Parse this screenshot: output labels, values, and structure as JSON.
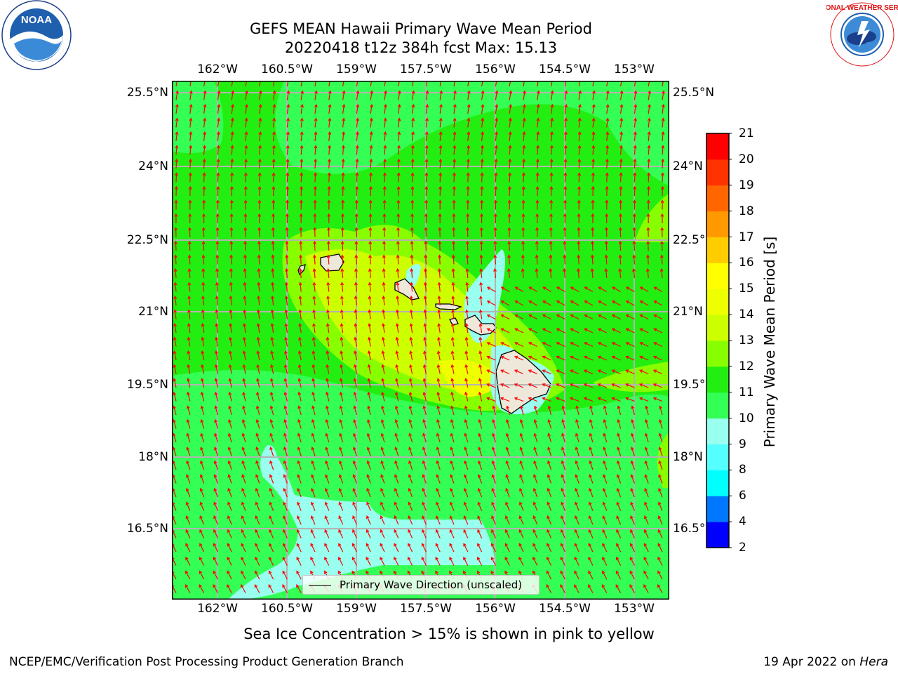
{
  "header": {
    "title_line1": "GEFS MEAN Hawaii Primary Wave Mean Period",
    "title_line2": "20220418 t12z 384h fcst   Max: 15.13"
  },
  "map": {
    "lon_labels": [
      "162°W",
      "160.5°W",
      "159°W",
      "157.5°W",
      "156°W",
      "154.5°W",
      "153°W"
    ],
    "lat_labels_left": [
      "25.5°N",
      "24°N",
      "22.5°N",
      "21°N",
      "19.5°N",
      "18°N",
      "16.5°N"
    ],
    "lat_labels_right": [
      "25.5°N",
      "24°N",
      "22.5°N",
      "21°N",
      "19.5°N",
      "18°N",
      "16.5°N"
    ],
    "legend_label": "Primary Wave Direction (unscaled)",
    "arrow_color": "#ff0000",
    "land_color": "#eee8da"
  },
  "colorbar": {
    "title": "Primary Wave Mean Period [s]",
    "levels": [
      "2",
      "4",
      "6",
      "8",
      "9",
      "10",
      "11",
      "12",
      "13",
      "14",
      "15",
      "16",
      "17",
      "18",
      "19",
      "20",
      "21"
    ],
    "colors": [
      "#0000ff",
      "#0077ff",
      "#00ffff",
      "#55ffff",
      "#99ffee",
      "#33ff55",
      "#22ee11",
      "#88ff00",
      "#ccff00",
      "#eeff00",
      "#ffff00",
      "#ffcc00",
      "#ff9900",
      "#ff6600",
      "#ff3300",
      "#ff0000"
    ]
  },
  "notes": {
    "sea_ice": "Sea Ice Concentration > 15% is shown in pink to yellow"
  },
  "footer": {
    "left": "NCEP/EMC/Verification Post Processing Product Generation Branch",
    "right_date": "19 Apr 2022 on ",
    "right_machine": "Hera"
  },
  "logos": {
    "noaa_text": "NOAA",
    "nws_text": "NATIONAL WEATHER SERVICE"
  }
}
